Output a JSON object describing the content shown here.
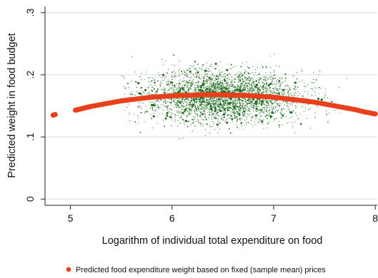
{
  "chart_data": {
    "type": "scatter",
    "title": "",
    "xlabel": "Logarithm of individual total expenditure on food",
    "ylabel": "Predicted weight in food budget",
    "xlim": [
      4.75,
      8.02
    ],
    "ylim": [
      -0.01,
      0.31
    ],
    "x_ticks": [
      "5",
      "6",
      "7",
      "8"
    ],
    "y_ticks": [
      "0",
      ".1",
      ".2",
      ".3"
    ],
    "grid": true,
    "legend_position": "bottom",
    "scatter_cloud": {
      "color": "#1e6b1e",
      "x_center": 6.5,
      "x_spread": 0.38,
      "y_center": 0.165,
      "y_spread": 0.02,
      "x_range": [
        5.5,
        7.9
      ],
      "y_range": [
        0.09,
        0.25
      ]
    },
    "series": [
      {
        "name": "Predicted food expenditure weight based on fixed (sample mean) prices",
        "color": "#e8401c",
        "x": [
          4.83,
          4.85,
          5.05,
          5.1,
          5.15,
          5.2,
          5.3,
          5.4,
          5.5,
          5.6,
          5.7,
          5.8,
          5.9,
          6.0,
          6.1,
          6.2,
          6.3,
          6.4,
          6.5,
          6.6,
          6.7,
          6.8,
          6.9,
          7.0,
          7.1,
          7.2,
          7.3,
          7.4,
          7.5,
          7.6,
          7.7,
          7.8,
          7.9,
          8.0
        ],
        "y": [
          0.135,
          0.136,
          0.143,
          0.145,
          0.147,
          0.149,
          0.152,
          0.155,
          0.158,
          0.16,
          0.162,
          0.164,
          0.165,
          0.166,
          0.167,
          0.167,
          0.168,
          0.168,
          0.168,
          0.167,
          0.167,
          0.166,
          0.165,
          0.164,
          0.162,
          0.16,
          0.158,
          0.156,
          0.153,
          0.15,
          0.147,
          0.144,
          0.14,
          0.137
        ]
      }
    ]
  }
}
